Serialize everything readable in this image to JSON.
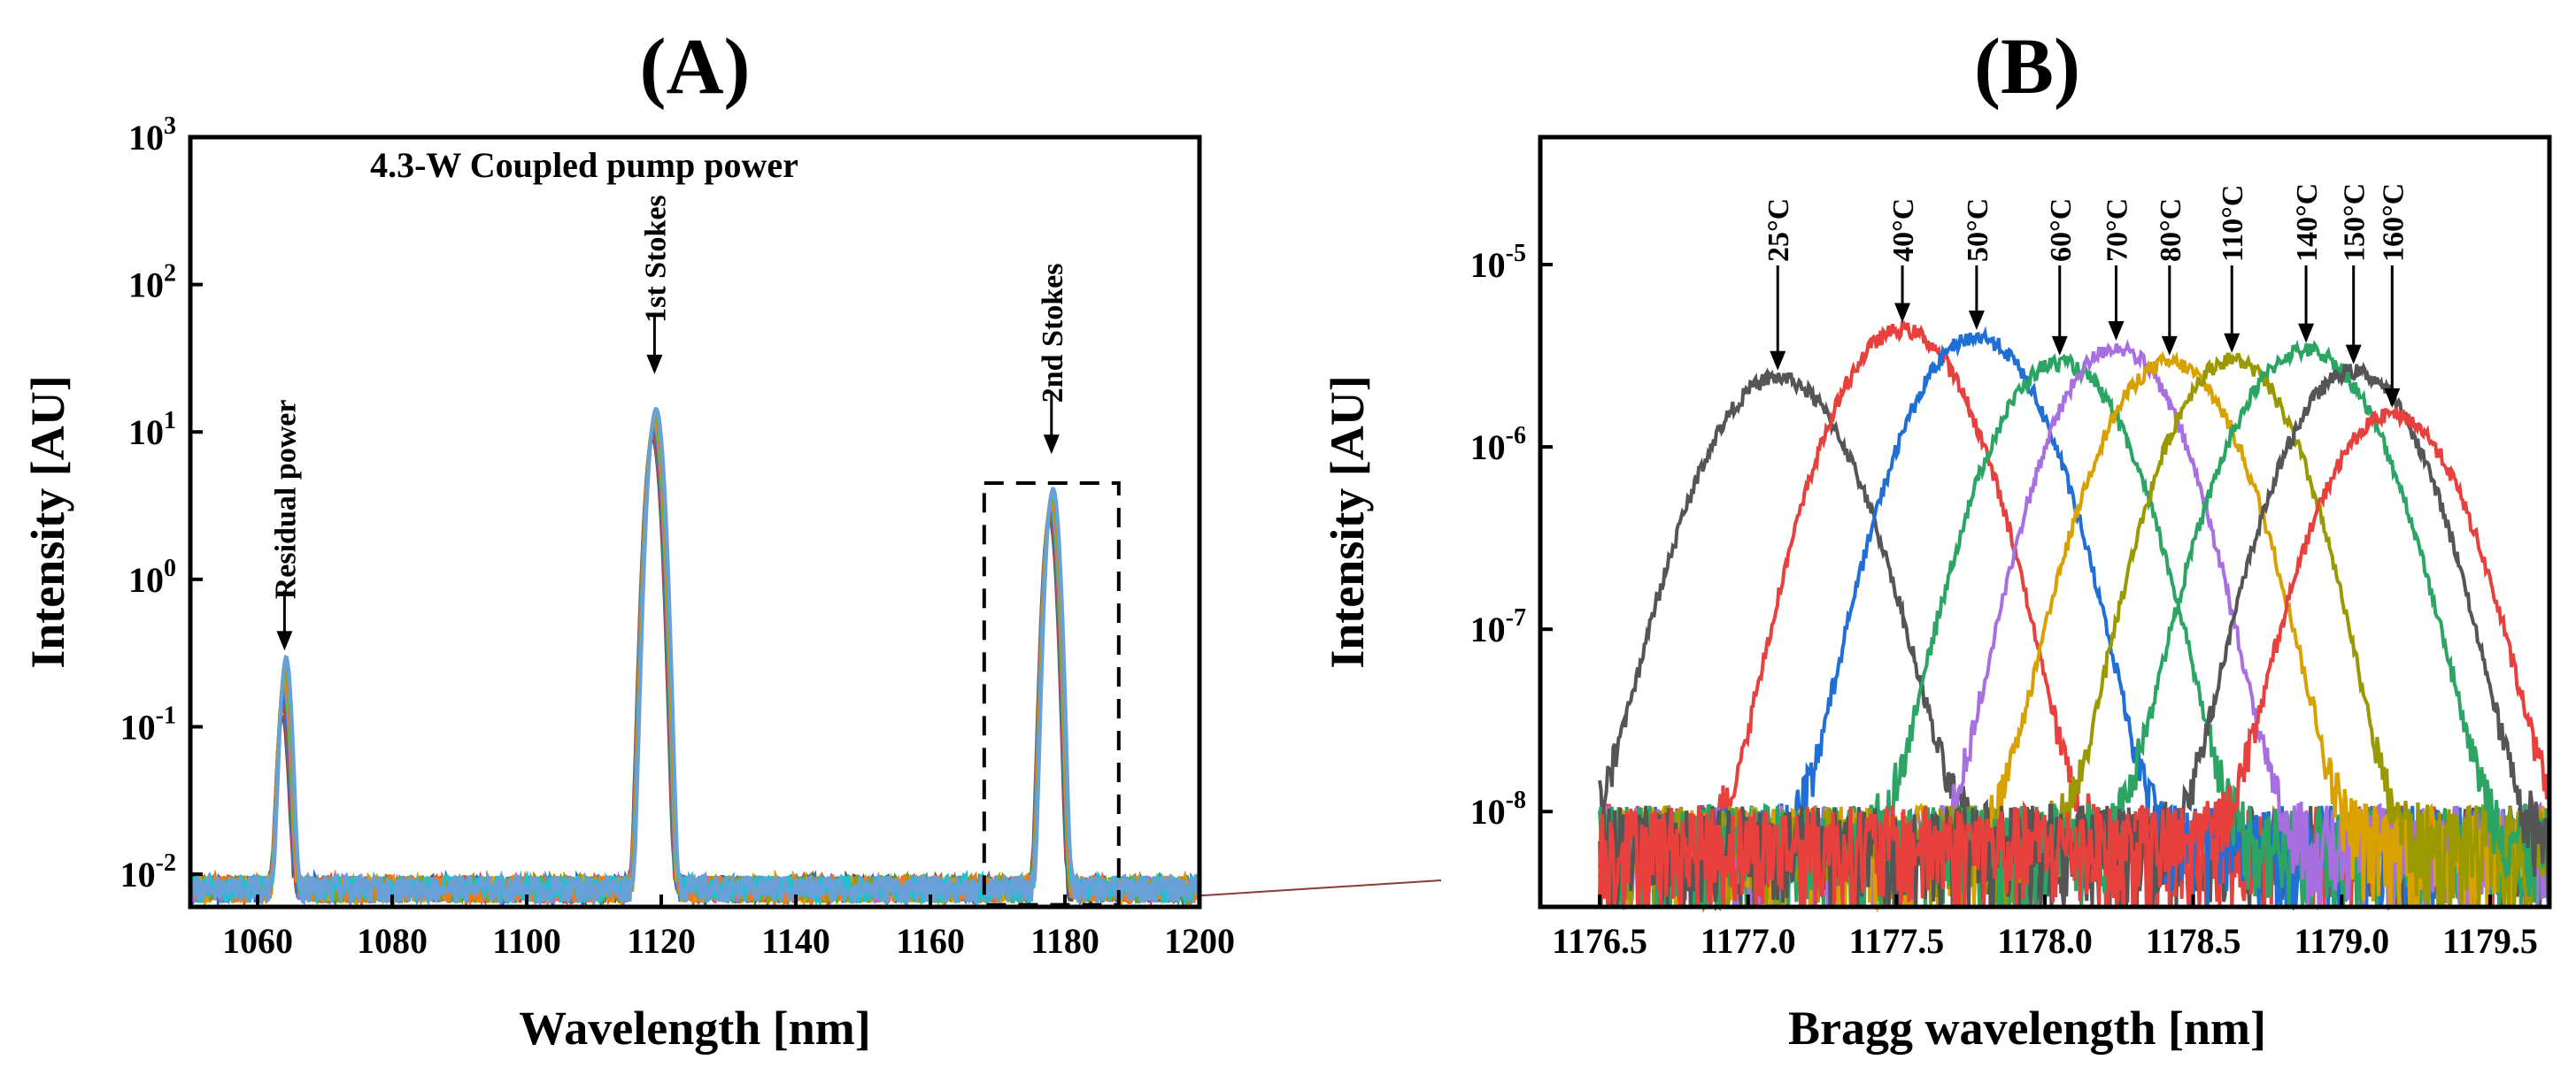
{
  "chart_data": [
    {
      "type": "line",
      "panel_label": "(A)",
      "title": "4.3-W Coupled pump power",
      "xlabel": "Wavelength [nm]",
      "ylabel": "Intensity [AU]",
      "xlim": [
        1050,
        1200
      ],
      "ylim": [
        0.006,
        1000
      ],
      "yscale": "log",
      "xticks": [
        1060,
        1080,
        1100,
        1120,
        1140,
        1160,
        1180,
        1200
      ],
      "xtick_labels": [
        "1060",
        "1080",
        "1100",
        "1120",
        "1140",
        "1160",
        "1180",
        "1200"
      ],
      "yticks": [
        {
          "value": 0.01,
          "base": "10",
          "exp": "-2"
        },
        {
          "value": 0.1,
          "base": "10",
          "exp": "-1"
        },
        {
          "value": 1,
          "base": "10",
          "exp": "0"
        },
        {
          "value": 10,
          "base": "10",
          "exp": "1"
        },
        {
          "value": 100,
          "base": "10",
          "exp": "2"
        },
        {
          "value": 1000,
          "base": "10",
          "exp": "3"
        }
      ],
      "noise_floor": 0.0075,
      "peaks": [
        {
          "name": "Residual power",
          "wavelength": 1064,
          "intensity": 0.2,
          "width": 0.6
        },
        {
          "name": "1st Stokes",
          "wavelength": 1119,
          "intensity": 15,
          "width": 0.8
        },
        {
          "name": "2nd Stokes",
          "wavelength": 1178,
          "intensity": 4.3,
          "width": 0.7
        }
      ],
      "annotations": [
        "Residual power",
        "1st Stokes",
        "2nd Stokes"
      ],
      "zoom_box_x": [
        1168,
        1188
      ],
      "zoom_box_y": [
        0.0062,
        4.5
      ],
      "colors": [
        "#555555",
        "#e8413d",
        "#1f6fd6",
        "#2ca564",
        "#a86fe0",
        "#d9a100",
        "#9a9a00",
        "#f07820",
        "#20c0d0",
        "#6aa0d8"
      ]
    },
    {
      "type": "line",
      "panel_label": "(B)",
      "xlabel": "Bragg wavelength [nm]",
      "ylabel": "Intensity [AU]",
      "xlim": [
        1176.3,
        1179.7
      ],
      "ylim": [
        3e-09,
        5e-05
      ],
      "yscale": "log",
      "xticks": [
        1176.5,
        1177.0,
        1177.5,
        1178.0,
        1178.5,
        1179.0,
        1179.5
      ],
      "xtick_labels": [
        "1176.5",
        "1177.0",
        "1177.5",
        "1178.0",
        "1178.5",
        "1179.0",
        "1179.5"
      ],
      "yticks": [
        {
          "value": 1e-08,
          "base": "10",
          "exp": "-8"
        },
        {
          "value": 1e-07,
          "base": "10",
          "exp": "-7"
        },
        {
          "value": 1e-06,
          "base": "10",
          "exp": "-6"
        },
        {
          "value": 1e-05,
          "base": "10",
          "exp": "-5"
        }
      ],
      "series": [
        {
          "name": "25°C",
          "center": 1177.1,
          "peak": 2.4e-06,
          "sigma": 0.17,
          "color": "#555555"
        },
        {
          "name": "40°C",
          "center": 1177.52,
          "peak": 4.4e-06,
          "sigma": 0.16,
          "color": "#e8413d"
        },
        {
          "name": "50°C",
          "center": 1177.77,
          "peak": 4e-06,
          "sigma": 0.16,
          "color": "#1f6fd6"
        },
        {
          "name": "60°C",
          "center": 1178.05,
          "peak": 2.9e-06,
          "sigma": 0.16,
          "color": "#2ca564"
        },
        {
          "name": "70°C",
          "center": 1178.24,
          "peak": 3.5e-06,
          "sigma": 0.15,
          "color": "#a86fe0"
        },
        {
          "name": "80°C",
          "center": 1178.42,
          "peak": 2.9e-06,
          "sigma": 0.16,
          "color": "#d9a100"
        },
        {
          "name": "110°C",
          "center": 1178.63,
          "peak": 3e-06,
          "sigma": 0.15,
          "color": "#9a9a00"
        },
        {
          "name": "140°C",
          "center": 1178.88,
          "peak": 3.4e-06,
          "sigma": 0.17,
          "color": "#2ca564"
        },
        {
          "name": "150°C",
          "center": 1179.04,
          "peak": 2.6e-06,
          "sigma": 0.16,
          "color": "#555555"
        },
        {
          "name": "160°C",
          "center": 1179.17,
          "peak": 1.5e-06,
          "sigma": 0.16,
          "color": "#e8413d"
        }
      ],
      "noise_floor": 6e-09
    }
  ]
}
